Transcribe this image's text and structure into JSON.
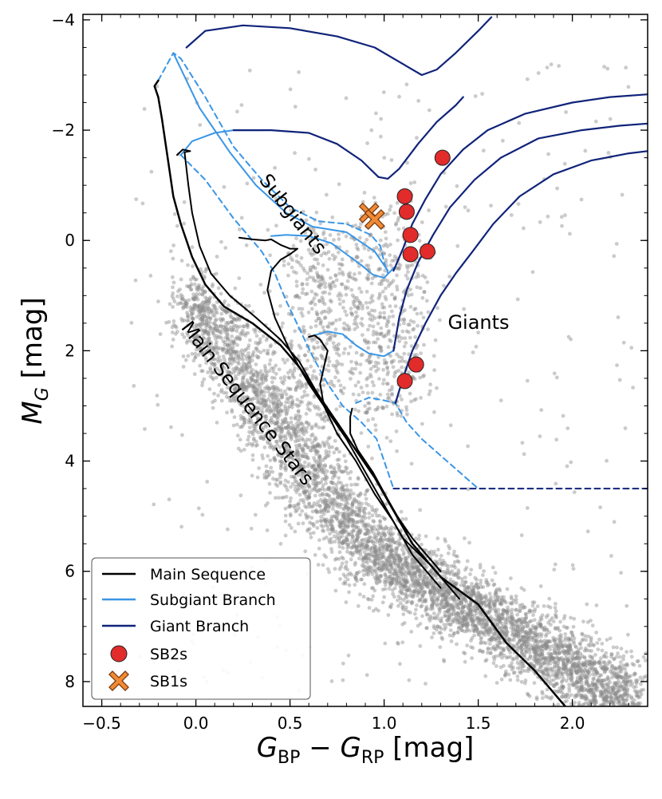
{
  "chart_data": {
    "type": "scatter",
    "xlabel_main": "G",
    "xlabel_sub1": "BP",
    "xlabel_minus": " − ",
    "xlabel_sub2": "RP",
    "xlabel_unit": " [mag]",
    "ylabel_main": "M",
    "ylabel_sub": "G",
    "ylabel_unit": " [mag]",
    "xlim": [
      -0.6,
      2.4
    ],
    "ylim": [
      8.45,
      -4.1
    ],
    "x_ticks": [
      -0.5,
      0.0,
      0.5,
      1.0,
      1.5,
      2.0
    ],
    "x_tick_labels": [
      "−0.5",
      "0.0",
      "0.5",
      "1.0",
      "1.5",
      "2.0"
    ],
    "y_ticks": [
      -4,
      -2,
      0,
      2,
      4,
      6,
      8
    ],
    "y_tick_labels": [
      "−4",
      "−2",
      "0",
      "2",
      "4",
      "6",
      "8"
    ],
    "region_labels": {
      "subgiants": "Subgiants",
      "giants": "Giants",
      "main_sequence": "Main Sequence Stars"
    },
    "legend": {
      "position": "lower-left",
      "main_sequence": "Main Sequence",
      "subgiant_branch": "Subgiant Branch",
      "giant_branch": "Giant Branch",
      "sb2s": "SB2s",
      "sb1s": "SB1s"
    },
    "colors": {
      "main_sequence": "#000000",
      "subgiant_branch": "#3a96e6",
      "giant_branch": "#10237a",
      "sb2": "#e22b2b",
      "sb1": "#f08a35",
      "background_stars": "#8c8c8c"
    },
    "sb2s": [
      {
        "x": 1.31,
        "y": -1.5
      },
      {
        "x": 1.11,
        "y": -0.8
      },
      {
        "x": 1.12,
        "y": -0.52
      },
      {
        "x": 1.14,
        "y": -0.1
      },
      {
        "x": 1.14,
        "y": 0.25
      },
      {
        "x": 1.23,
        "y": 0.2
      },
      {
        "x": 1.17,
        "y": 2.25
      },
      {
        "x": 1.11,
        "y": 2.55
      }
    ],
    "sb1s": [
      {
        "x": 0.92,
        "y": -0.5
      },
      {
        "x": 0.95,
        "y": -0.38
      }
    ],
    "main_sequence_tracks": [
      [
        [
          -0.2,
          -2.9
        ],
        [
          -0.22,
          -2.8
        ],
        [
          -0.2,
          -2.6
        ],
        [
          -0.18,
          -2.2
        ],
        [
          -0.15,
          -1.5
        ],
        [
          -0.12,
          -0.8
        ],
        [
          -0.08,
          -0.3
        ],
        [
          -0.02,
          0.3
        ],
        [
          0.05,
          0.8
        ],
        [
          0.15,
          1.2
        ],
        [
          0.3,
          1.5
        ],
        [
          0.45,
          1.9
        ],
        [
          0.55,
          2.3
        ],
        [
          0.65,
          2.8
        ],
        [
          0.75,
          3.3
        ],
        [
          0.85,
          3.8
        ],
        [
          0.95,
          4.3
        ],
        [
          1.05,
          4.9
        ],
        [
          1.15,
          5.5
        ],
        [
          1.3,
          6.1
        ],
        [
          1.5,
          6.6
        ],
        [
          1.65,
          7.3
        ],
        [
          1.8,
          7.8
        ],
        [
          2.0,
          8.6
        ]
      ],
      [
        [
          -0.1,
          -1.55
        ],
        [
          -0.07,
          -1.65
        ],
        [
          -0.03,
          -1.62
        ],
        [
          -0.06,
          -1.6
        ],
        [
          -0.04,
          -1.0
        ],
        [
          -0.02,
          -0.5
        ],
        [
          0.02,
          0.1
        ],
        [
          0.08,
          0.6
        ],
        [
          0.18,
          1.0
        ],
        [
          0.32,
          1.4
        ],
        [
          0.45,
          1.8
        ],
        [
          0.55,
          2.2
        ],
        [
          0.65,
          2.8
        ],
        [
          0.75,
          3.3
        ],
        [
          0.85,
          3.8
        ],
        [
          0.95,
          4.3
        ],
        [
          1.05,
          4.9
        ],
        [
          1.15,
          5.4
        ],
        [
          1.3,
          6.0
        ]
      ],
      [
        [
          0.23,
          -0.05
        ],
        [
          0.3,
          -0.02
        ],
        [
          0.37,
          0.0
        ],
        [
          0.4,
          -0.02
        ],
        [
          0.45,
          0.08
        ],
        [
          0.5,
          0.15
        ],
        [
          0.54,
          0.15
        ],
        [
          0.5,
          0.25
        ],
        [
          0.45,
          0.35
        ],
        [
          0.4,
          0.55
        ],
        [
          0.38,
          0.9
        ],
        [
          0.42,
          1.4
        ],
        [
          0.5,
          2.0
        ],
        [
          0.6,
          2.6
        ],
        [
          0.7,
          3.1
        ],
        [
          0.8,
          3.6
        ],
        [
          0.9,
          4.2
        ],
        [
          1.0,
          4.8
        ],
        [
          1.1,
          5.4
        ],
        [
          1.25,
          5.9
        ],
        [
          1.4,
          6.5
        ]
      ],
      [
        [
          0.6,
          1.75
        ],
        [
          0.63,
          1.72
        ],
        [
          0.66,
          1.8
        ],
        [
          0.7,
          2.0
        ],
        [
          0.68,
          2.3
        ],
        [
          0.66,
          2.6
        ],
        [
          0.68,
          3.0
        ],
        [
          0.75,
          3.5
        ],
        [
          0.85,
          4.0
        ],
        [
          0.95,
          4.6
        ],
        [
          1.05,
          5.1
        ],
        [
          1.15,
          5.7
        ],
        [
          1.3,
          6.3
        ]
      ],
      [
        [
          0.83,
          3.05
        ],
        [
          0.82,
          3.2
        ],
        [
          0.82,
          3.5
        ],
        [
          0.86,
          3.8
        ],
        [
          0.94,
          4.2
        ],
        [
          1.02,
          4.7
        ],
        [
          1.12,
          5.3
        ]
      ]
    ],
    "subgiant_tracks": [
      [
        [
          -0.2,
          -2.9
        ],
        [
          -0.12,
          -3.4
        ],
        [
          -0.08,
          -3.3
        ],
        [
          0.05,
          -2.6
        ],
        [
          0.2,
          -1.7
        ],
        [
          0.35,
          -1.1
        ],
        [
          0.5,
          -0.6
        ],
        [
          0.65,
          -0.35
        ],
        [
          0.8,
          -0.3
        ],
        [
          0.93,
          -0.1
        ],
        [
          0.98,
          0.1
        ],
        [
          1.0,
          0.4
        ],
        [
          1.02,
          0.6
        ]
      ],
      [
        [
          -0.12,
          -3.4
        ],
        [
          0.02,
          -2.4
        ],
        [
          0.18,
          -1.6
        ],
        [
          0.32,
          -1.0
        ],
        [
          0.48,
          -0.5
        ],
        [
          0.62,
          -0.25
        ],
        [
          0.8,
          -0.15
        ],
        [
          0.95,
          0.2
        ],
        [
          1.02,
          0.55
        ]
      ],
      [
        [
          -0.08,
          -1.55
        ],
        [
          -0.02,
          -1.8
        ],
        [
          0.1,
          -1.95
        ],
        [
          0.2,
          -2.0
        ],
        [
          0.35,
          -2.0
        ]
      ],
      [
        [
          -0.08,
          -1.55
        ],
        [
          0.05,
          -1.1
        ],
        [
          0.2,
          -0.4
        ],
        [
          0.3,
          0.0
        ],
        [
          0.35,
          0.2
        ],
        [
          0.42,
          0.6
        ],
        [
          0.48,
          1.1
        ],
        [
          0.55,
          1.6
        ],
        [
          0.62,
          2.1
        ],
        [
          0.7,
          2.6
        ],
        [
          0.78,
          3.0
        ],
        [
          0.88,
          3.3
        ],
        [
          0.96,
          3.6
        ],
        [
          1.05,
          4.5
        ]
      ],
      [
        [
          0.4,
          -0.08
        ],
        [
          0.48,
          -0.1
        ],
        [
          0.6,
          -0.08
        ],
        [
          0.72,
          0.05
        ],
        [
          0.8,
          0.25
        ],
        [
          0.88,
          0.45
        ],
        [
          0.94,
          0.62
        ],
        [
          1.0,
          0.68
        ],
        [
          1.05,
          0.5
        ]
      ],
      [
        [
          0.63,
          1.72
        ],
        [
          0.7,
          1.65
        ],
        [
          0.78,
          1.7
        ],
        [
          0.85,
          1.9
        ],
        [
          0.92,
          2.05
        ],
        [
          1.0,
          2.1
        ],
        [
          1.05,
          2.0
        ]
      ],
      [
        [
          0.85,
          2.95
        ],
        [
          0.92,
          2.85
        ],
        [
          1.0,
          2.9
        ],
        [
          1.06,
          2.95
        ],
        [
          1.12,
          3.3
        ],
        [
          1.2,
          3.6
        ],
        [
          1.3,
          3.9
        ],
        [
          1.4,
          4.2
        ],
        [
          1.5,
          4.5
        ]
      ]
    ],
    "giant_tracks": [
      [
        [
          -0.05,
          -3.5
        ],
        [
          0.05,
          -3.8
        ],
        [
          0.25,
          -3.9
        ],
        [
          0.5,
          -3.85
        ],
        [
          0.75,
          -3.7
        ],
        [
          0.95,
          -3.5
        ],
        [
          1.1,
          -3.2
        ],
        [
          1.2,
          -3.0
        ],
        [
          1.28,
          -3.1
        ],
        [
          1.38,
          -3.4
        ],
        [
          1.5,
          -3.8
        ],
        [
          1.57,
          -4.05
        ]
      ],
      [
        [
          0.2,
          -2.0
        ],
        [
          0.4,
          -2.0
        ],
        [
          0.6,
          -1.95
        ],
        [
          0.75,
          -1.75
        ],
        [
          0.88,
          -1.45
        ],
        [
          0.97,
          -1.15
        ],
        [
          1.02,
          -1.12
        ],
        [
          1.08,
          -1.3
        ],
        [
          1.18,
          -1.75
        ],
        [
          1.28,
          -2.15
        ],
        [
          1.38,
          -2.45
        ],
        [
          1.42,
          -2.6
        ]
      ],
      [
        [
          1.05,
          0.55
        ],
        [
          1.1,
          0.15
        ],
        [
          1.15,
          -0.3
        ],
        [
          1.22,
          -0.75
        ],
        [
          1.3,
          -1.2
        ],
        [
          1.42,
          -1.65
        ],
        [
          1.55,
          -2.0
        ],
        [
          1.75,
          -2.3
        ],
        [
          2.0,
          -2.5
        ],
        [
          2.2,
          -2.6
        ],
        [
          2.4,
          -2.65
        ]
      ],
      [
        [
          1.05,
          2.0
        ],
        [
          1.08,
          1.4
        ],
        [
          1.12,
          0.9
        ],
        [
          1.18,
          0.4
        ],
        [
          1.26,
          -0.1
        ],
        [
          1.35,
          -0.6
        ],
        [
          1.48,
          -1.1
        ],
        [
          1.62,
          -1.5
        ],
        [
          1.82,
          -1.85
        ],
        [
          2.05,
          -2.0
        ],
        [
          2.25,
          -2.08
        ],
        [
          2.4,
          -2.12
        ]
      ],
      [
        [
          1.06,
          2.95
        ],
        [
          1.1,
          2.5
        ],
        [
          1.15,
          2.0
        ],
        [
          1.22,
          1.5
        ],
        [
          1.3,
          1.0
        ],
        [
          1.38,
          0.6
        ],
        [
          1.47,
          0.2
        ],
        [
          1.58,
          -0.3
        ],
        [
          1.72,
          -0.8
        ],
        [
          1.9,
          -1.2
        ],
        [
          2.1,
          -1.45
        ],
        [
          2.3,
          -1.58
        ],
        [
          2.4,
          -1.62
        ]
      ]
    ],
    "giant_dashed": [
      [
        1.05,
        4.5
      ],
      [
        2.4,
        4.5
      ]
    ]
  }
}
